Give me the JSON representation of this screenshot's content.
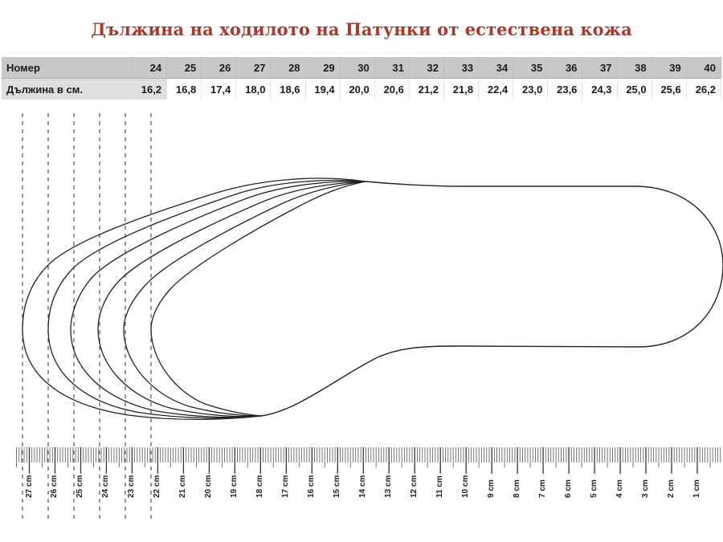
{
  "title": "Дължина на ходилото на Патунки от естествена кожа",
  "table": {
    "row_header_label": "Номер",
    "row_length_label": "Дължина в см.",
    "sizes": [
      "24",
      "25",
      "26",
      "27",
      "28",
      "29",
      "30",
      "31",
      "32",
      "33",
      "34",
      "35",
      "36",
      "37",
      "38",
      "39",
      "40"
    ],
    "lengths_cm": [
      "16,2",
      "16,8",
      "17,4",
      "18,0",
      "18,6",
      "19,4",
      "20,0",
      "20,6",
      "21,2",
      "21,8",
      "22,4",
      "23,0",
      "23,6",
      "24,3",
      "25,0",
      "25,6",
      "26,2"
    ]
  },
  "ruler": {
    "unit": "cm",
    "labels": [
      "27 cm",
      "26 cm",
      "25 cm",
      "24 cm",
      "23 cm",
      "22 cm",
      "21 cm",
      "20 cm",
      "19 cm",
      "18 cm",
      "17 cm",
      "16 cm",
      "15 cm",
      "14 cm",
      "13 cm",
      "12 cm",
      "11 cm",
      "10 cm",
      "9 cm",
      "8 cm",
      "7 cm",
      "6 cm",
      "5 cm",
      "4 cm",
      "3 cm",
      "2 cm",
      "1 cm"
    ]
  },
  "colors": {
    "title": "#a83a2c",
    "table_header_bg": "#c8c8c8",
    "outline": "#222222"
  },
  "chart_data": {
    "type": "table",
    "title": "Дължина на ходилото на Патунки от естествена кожа",
    "categories": [
      "24",
      "25",
      "26",
      "27",
      "28",
      "29",
      "30",
      "31",
      "32",
      "33",
      "34",
      "35",
      "36",
      "37",
      "38",
      "39",
      "40"
    ],
    "series": [
      {
        "name": "Дължина в см.",
        "values": [
          16.2,
          16.8,
          17.4,
          18.0,
          18.6,
          19.4,
          20.0,
          20.6,
          21.2,
          21.8,
          22.4,
          23.0,
          23.6,
          24.3,
          25.0,
          25.6,
          26.2
        ]
      }
    ],
    "xlabel": "Номер",
    "ylabel": "Дължина в см."
  }
}
